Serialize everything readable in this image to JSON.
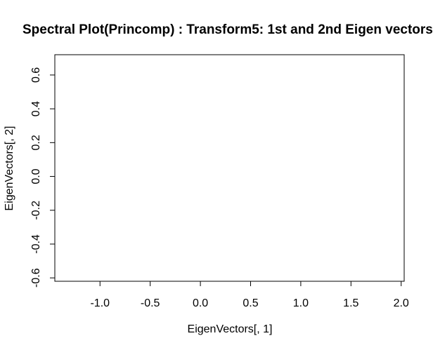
{
  "chart_data": {
    "type": "scatter",
    "title": "Spectral Plot(Princomp) : Transform5: 1st and 2nd Eigen vectors",
    "xlabel": "EigenVectors[, 1]",
    "ylabel": "EigenVectors[, 2]",
    "xlim": [
      -1.45,
      2.03
    ],
    "ylim": [
      -0.62,
      0.72
    ],
    "x_ticks": [
      -1.0,
      -0.5,
      0.0,
      0.5,
      1.0,
      1.5,
      2.0
    ],
    "x_tick_labels": [
      "-1.0",
      "-0.5",
      "0.0",
      "0.5",
      "1.0",
      "1.5",
      "2.0"
    ],
    "y_ticks": [
      -0.6,
      -0.4,
      -0.2,
      0.0,
      0.2,
      0.4,
      0.6
    ],
    "y_tick_labels": [
      "-0.6",
      "-0.4",
      "-0.2",
      "0.0",
      "0.2",
      "0.4",
      "0.6"
    ],
    "grid": false,
    "series": [
      {
        "x": [],
        "y": []
      }
    ]
  }
}
